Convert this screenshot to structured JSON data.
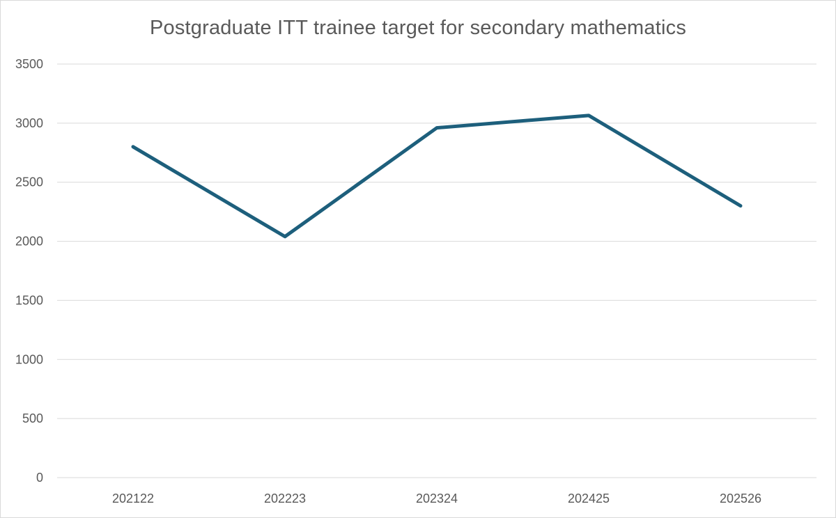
{
  "chart_data": {
    "type": "line",
    "title": "Postgraduate ITT trainee target for secondary mathematics",
    "categories": [
      "202122",
      "202223",
      "202324",
      "202425",
      "202526"
    ],
    "series": [
      {
        "values": [
          2800,
          2040,
          2960,
          3065,
          2300
        ],
        "color": "#1d5f7c"
      }
    ],
    "ylim": [
      0,
      3500
    ],
    "yticks": [
      0,
      500,
      1000,
      1500,
      2000,
      2500,
      3000,
      3500
    ],
    "ytick_labels": [
      "0",
      "500",
      "1000",
      "1500",
      "2000",
      "2500",
      "3000",
      "3500"
    ],
    "grid": true,
    "legend": "none",
    "xlabel": "",
    "ylabel": ""
  }
}
